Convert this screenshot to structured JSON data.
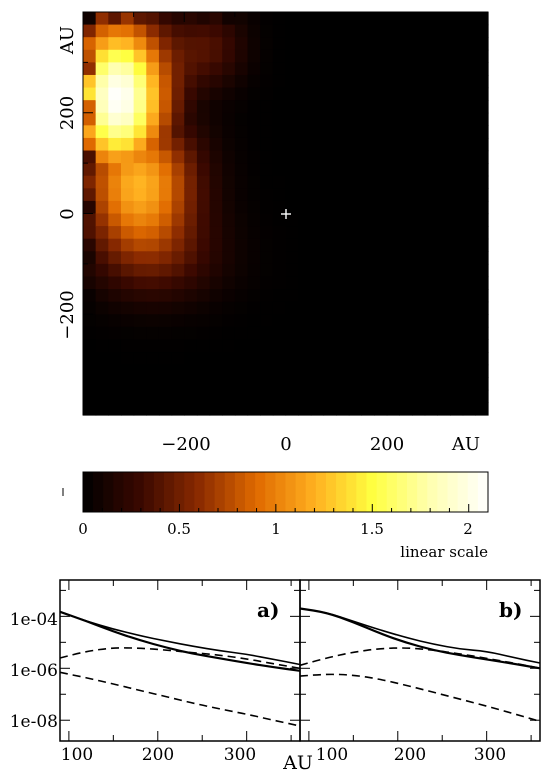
{
  "chart_data": [
    {
      "type": "heatmap",
      "title": "",
      "xlabel": "AU",
      "ylabel": "AU",
      "xlim": [
        -400,
        400
      ],
      "ylim": [
        -400,
        400
      ],
      "x_ticks": [
        "−200",
        "0",
        "200"
      ],
      "y_ticks": [
        "−200",
        "0",
        "200"
      ],
      "center_marker": {
        "symbol": "+",
        "x": 0,
        "y": 0
      },
      "grid": false,
      "description_of_field": "Bright emission concentrated in the upper-left quadrant, peak value ≈2.1 near (−330, 230) AU, fading to zero toward the right and bottom.",
      "peak": {
        "x": -330,
        "y": 230,
        "value": 2.1
      },
      "colorbar": {
        "min": 0,
        "max": 2.1,
        "ticks": [
          "0",
          "0.5",
          "1",
          "1.5",
          "2"
        ],
        "label": "linear scale",
        "colors": [
          "#000000",
          "#3a0800",
          "#8a2a00",
          "#e06a00",
          "#ffb020",
          "#ffff40",
          "#ffffb0",
          "#ffffff"
        ]
      }
    },
    {
      "type": "line",
      "panel_label": "a)",
      "xlabel": "AU",
      "xlim": [
        90,
        360
      ],
      "ylim_log10": [
        -8.8,
        -2.6
      ],
      "y_scale": "log",
      "y_ticks": [
        "1e-04",
        "1e-06",
        "1e-08"
      ],
      "x_ticks": [
        "100",
        "200",
        "300"
      ],
      "series": [
        {
          "style": "solid-thick",
          "x": [
            90,
            120,
            150,
            180,
            210,
            240,
            270,
            300,
            330,
            360
          ],
          "y": [
            0.00015,
            6.5e-05,
            2.6e-05,
            1.2e-05,
            6.2e-06,
            3.6e-06,
            2.4e-06,
            1.6e-06,
            1.1e-06,
            8e-07
          ]
        },
        {
          "style": "solid-thin",
          "x": [
            90,
            120,
            150,
            180,
            210,
            240,
            270,
            300,
            330,
            360
          ],
          "y": [
            0.00015,
            6.5e-05,
            3.2e-05,
            1.8e-05,
            1.1e-05,
            7e-06,
            4.7e-06,
            3.5e-06,
            2.2e-06,
            1.4e-06
          ]
        },
        {
          "style": "dashed",
          "x": [
            90,
            120,
            150,
            180,
            210,
            240,
            270,
            300,
            330,
            360
          ],
          "y": [
            2.5e-06,
            4.5e-06,
            6.2e-06,
            6e-06,
            5e-06,
            4e-06,
            3.2e-06,
            2.3e-06,
            1.5e-06,
            1e-06
          ]
        },
        {
          "style": "dashed",
          "x": [
            90,
            120,
            150,
            180,
            210,
            240,
            270,
            300,
            330,
            360
          ],
          "y": [
            7e-07,
            4.3e-07,
            2.5e-07,
            1.4e-07,
            8e-08,
            4.5e-08,
            2.7e-08,
            1.7e-08,
            1e-08,
            6e-09
          ]
        }
      ]
    },
    {
      "type": "line",
      "panel_label": "b)",
      "xlabel": "AU",
      "xlim": [
        90,
        360
      ],
      "ylim_log10": [
        -8.8,
        -2.6
      ],
      "y_scale": "log",
      "x_ticks": [
        "100",
        "200",
        "300"
      ],
      "series": [
        {
          "style": "solid-thick",
          "x": [
            90,
            120,
            150,
            180,
            210,
            240,
            270,
            300,
            330,
            360
          ],
          "y": [
            0.0002,
            0.00014,
            6e-05,
            2.2e-05,
            9.5e-06,
            5e-06,
            3.2e-06,
            2.2e-06,
            1.5e-06,
            1e-06
          ]
        },
        {
          "style": "solid-thin",
          "x": [
            90,
            120,
            150,
            180,
            210,
            240,
            270,
            300,
            330,
            360
          ],
          "y": [
            0.0002,
            0.00014,
            6.5e-05,
            3e-05,
            1.5e-05,
            8.5e-06,
            5.5e-06,
            4.5e-06,
            2.6e-06,
            1.6e-06
          ]
        },
        {
          "style": "dashed",
          "x": [
            90,
            120,
            150,
            180,
            210,
            240,
            270,
            300,
            330,
            360
          ],
          "y": [
            1.3e-06,
            2.5e-06,
            4.2e-06,
            5.8e-06,
            6.2e-06,
            5e-06,
            3.6e-06,
            2.4e-06,
            1.6e-06,
            1e-06
          ]
        },
        {
          "style": "dashed",
          "x": [
            90,
            120,
            150,
            180,
            210,
            240,
            270,
            300,
            330,
            360
          ],
          "y": [
            5e-07,
            6e-07,
            5.5e-07,
            3.8e-07,
            2.2e-07,
            1.2e-07,
            6.5e-08,
            3.5e-08,
            1.8e-08,
            9e-09
          ]
        }
      ]
    }
  ]
}
